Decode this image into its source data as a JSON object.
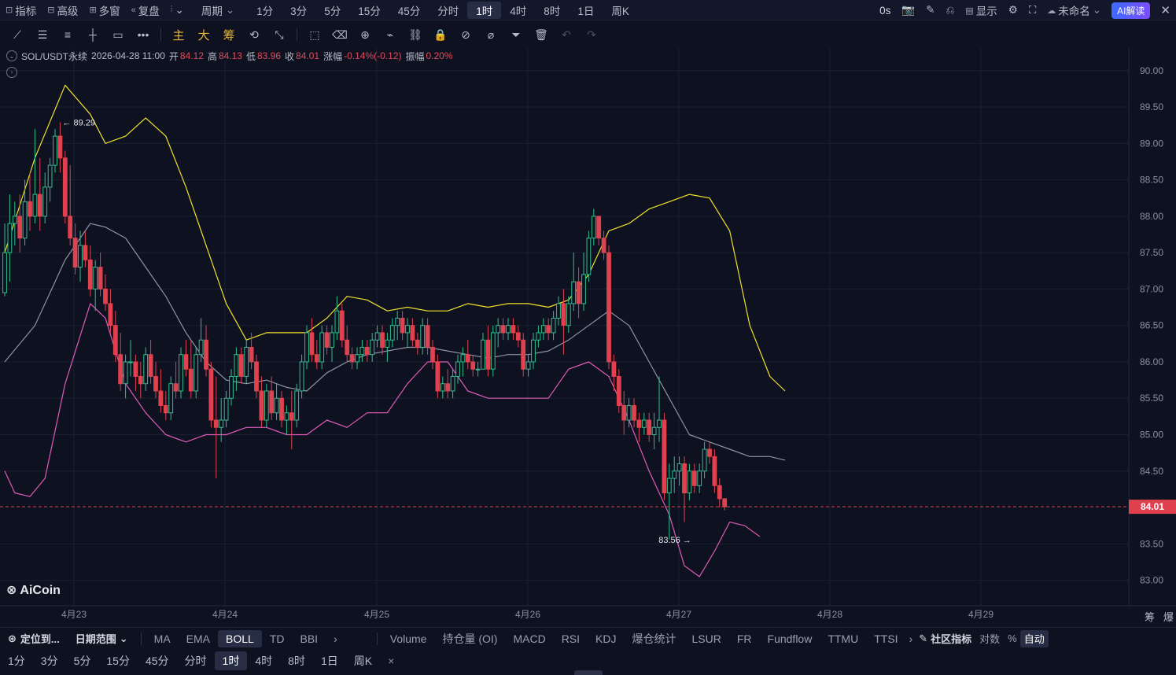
{
  "topbar": {
    "left": [
      {
        "icon": "indicator-icon",
        "glyph": "⊡",
        "label": "指标"
      },
      {
        "icon": "advanced-icon",
        "glyph": "⊟",
        "label": "高级"
      },
      {
        "icon": "multiwindow-icon",
        "glyph": "⊞",
        "label": "多窗"
      },
      {
        "icon": "replay-icon",
        "glyph": "«",
        "label": "复盘"
      },
      {
        "icon": "candle-type-icon",
        "glyph": "⫶",
        "label": "⌄"
      }
    ],
    "period": "周期",
    "period_arrow": "⌄",
    "timeframes": [
      "1分",
      "3分",
      "5分",
      "15分",
      "45分",
      "分时",
      "1时",
      "4时",
      "8时",
      "1日",
      "周K"
    ],
    "active_timeframe": "1时",
    "right": {
      "countdown": "0s",
      "display": "显示",
      "workspace": "未命名",
      "ai": "AI解读"
    }
  },
  "toolbar": {
    "gold": [
      "主",
      "大",
      "筹"
    ]
  },
  "info": {
    "symbol": "SOL/USDT永续",
    "datetime": "2026-04-28 11:00",
    "open_label": "开",
    "open": "84.12",
    "high_label": "高",
    "high": "84.13",
    "low_label": "低",
    "low": "83.96",
    "close_label": "收",
    "close": "84.01",
    "change_label": "涨幅",
    "change": "-0.14%(-0.12)",
    "amp_label": "振幅",
    "amp": "0.20%"
  },
  "chart_data": {
    "type": "candlestick",
    "y_ticks": [
      "90.00",
      "89.50",
      "89.00",
      "88.50",
      "88.00",
      "87.50",
      "87.00",
      "86.50",
      "86.00",
      "85.50",
      "85.00",
      "84.50",
      "84.01",
      "83.50",
      "83.00"
    ],
    "ylim": [
      82.65,
      90.3
    ],
    "x_ticks": [
      "4月23",
      "4月24",
      "4月25",
      "4月26",
      "4月27",
      "4月28",
      "4月29"
    ],
    "last_price": "84.01",
    "annotations": [
      {
        "label": "← 89.29",
        "value": 89.29
      },
      {
        "label": "83.56 →",
        "value": 83.56
      }
    ],
    "indicator": "BOLL",
    "series": [
      {
        "name": "upper",
        "color": "#f2e12c"
      },
      {
        "name": "mid",
        "color": "#8d93a6"
      },
      {
        "name": "lower",
        "color": "#e05ab8"
      }
    ],
    "ohlc": [
      [
        86.95,
        87.9,
        86.9,
        87.5
      ],
      [
        87.5,
        88.3,
        87.1,
        87.9
      ],
      [
        87.9,
        88.2,
        87.6,
        88.0
      ],
      [
        88.0,
        88.3,
        87.5,
        87.7
      ],
      [
        87.7,
        88.5,
        87.6,
        88.2
      ],
      [
        88.2,
        88.6,
        87.8,
        88.0
      ],
      [
        88.0,
        89.2,
        87.9,
        88.3
      ],
      [
        88.3,
        88.8,
        87.8,
        88.0
      ],
      [
        88.0,
        88.6,
        87.9,
        88.4
      ],
      [
        88.4,
        88.8,
        88.2,
        88.7
      ],
      [
        88.7,
        89.2,
        88.6,
        89.1
      ],
      [
        89.1,
        89.29,
        88.6,
        88.8
      ],
      [
        88.8,
        88.9,
        87.9,
        88.0
      ],
      [
        88.0,
        88.7,
        87.6,
        87.7
      ],
      [
        87.7,
        87.9,
        87.2,
        87.3
      ],
      [
        87.3,
        87.8,
        87.1,
        87.6
      ],
      [
        87.6,
        87.8,
        87.3,
        87.4
      ],
      [
        87.4,
        87.6,
        86.9,
        87.0
      ],
      [
        87.0,
        87.4,
        86.7,
        87.3
      ],
      [
        87.3,
        87.5,
        86.9,
        87.0
      ],
      [
        87.0,
        87.2,
        86.7,
        86.8
      ],
      [
        86.8,
        87.0,
        86.4,
        86.5
      ],
      [
        86.5,
        86.7,
        86.0,
        86.1
      ],
      [
        86.1,
        86.4,
        85.6,
        85.7
      ],
      [
        85.7,
        86.1,
        85.5,
        86.0
      ],
      [
        86.0,
        86.3,
        85.8,
        86.0
      ],
      [
        86.0,
        86.1,
        85.6,
        85.8
      ],
      [
        85.8,
        86.0,
        85.5,
        85.7
      ],
      [
        85.7,
        86.2,
        85.6,
        86.1
      ],
      [
        86.1,
        86.3,
        85.7,
        85.8
      ],
      [
        85.8,
        86.0,
        85.5,
        85.6
      ],
      [
        85.6,
        85.9,
        85.3,
        85.4
      ],
      [
        85.4,
        85.6,
        85.2,
        85.3
      ],
      [
        85.3,
        85.8,
        85.2,
        85.7
      ],
      [
        85.7,
        86.0,
        85.5,
        85.6
      ],
      [
        85.6,
        86.2,
        85.5,
        86.1
      ],
      [
        86.1,
        86.3,
        85.8,
        85.9
      ],
      [
        85.9,
        86.3,
        85.5,
        85.6
      ],
      [
        85.6,
        86.2,
        85.5,
        86.1
      ],
      [
        86.1,
        86.6,
        86.0,
        86.3
      ],
      [
        86.3,
        86.5,
        85.8,
        85.9
      ],
      [
        85.9,
        86.0,
        85.1,
        85.2
      ],
      [
        85.2,
        85.8,
        84.4,
        85.1
      ],
      [
        85.1,
        85.5,
        84.9,
        85.2
      ],
      [
        85.2,
        85.6,
        85.1,
        85.5
      ],
      [
        85.5,
        85.9,
        85.4,
        85.8
      ],
      [
        85.8,
        86.2,
        85.6,
        86.1
      ],
      [
        86.1,
        86.2,
        85.7,
        85.8
      ],
      [
        85.8,
        86.3,
        85.7,
        86.2
      ],
      [
        86.2,
        86.4,
        85.9,
        86.0
      ],
      [
        86.0,
        86.1,
        85.5,
        85.6
      ],
      [
        85.6,
        85.8,
        85.1,
        85.2
      ],
      [
        85.2,
        85.7,
        85.1,
        85.6
      ],
      [
        85.6,
        85.8,
        85.2,
        85.3
      ],
      [
        85.3,
        85.7,
        85.2,
        85.5
      ],
      [
        85.5,
        85.6,
        85.1,
        85.2
      ],
      [
        85.2,
        85.4,
        85.0,
        85.3
      ],
      [
        85.3,
        85.6,
        84.8,
        85.2
      ],
      [
        85.2,
        85.7,
        85.1,
        85.6
      ],
      [
        85.6,
        86.1,
        85.5,
        86.0
      ],
      [
        86.0,
        86.5,
        85.9,
        86.4
      ],
      [
        86.4,
        86.6,
        86.0,
        86.1
      ],
      [
        86.1,
        86.3,
        85.9,
        86.0
      ],
      [
        86.0,
        86.5,
        85.9,
        86.4
      ],
      [
        86.4,
        86.5,
        86.1,
        86.2
      ],
      [
        86.2,
        86.5,
        86.0,
        86.4
      ],
      [
        86.4,
        86.9,
        86.3,
        86.7
      ],
      [
        86.7,
        86.8,
        86.2,
        86.3
      ],
      [
        86.3,
        86.5,
        86.0,
        86.1
      ],
      [
        86.1,
        86.2,
        85.9,
        86.0
      ],
      [
        86.0,
        86.2,
        85.9,
        86.1
      ],
      [
        86.1,
        86.3,
        86.0,
        86.2
      ],
      [
        86.2,
        86.3,
        86.0,
        86.1
      ],
      [
        86.1,
        86.4,
        86.0,
        86.3
      ],
      [
        86.3,
        86.5,
        86.2,
        86.4
      ],
      [
        86.4,
        86.5,
        86.1,
        86.2
      ],
      [
        86.2,
        86.4,
        86.0,
        86.3
      ],
      [
        86.3,
        86.6,
        86.2,
        86.5
      ],
      [
        86.5,
        86.7,
        86.3,
        86.6
      ],
      [
        86.6,
        86.7,
        86.3,
        86.4
      ],
      [
        86.4,
        86.6,
        86.2,
        86.5
      ],
      [
        86.5,
        86.6,
        86.2,
        86.3
      ],
      [
        86.3,
        86.4,
        86.1,
        86.2
      ],
      [
        86.2,
        86.6,
        86.1,
        86.5
      ],
      [
        86.5,
        86.6,
        86.1,
        86.2
      ],
      [
        86.2,
        86.3,
        85.9,
        86.0
      ],
      [
        86.0,
        86.1,
        85.5,
        85.6
      ],
      [
        85.6,
        85.8,
        85.5,
        85.7
      ],
      [
        85.7,
        85.9,
        85.5,
        85.6
      ],
      [
        85.6,
        85.9,
        85.5,
        85.8
      ],
      [
        85.8,
        86.1,
        85.7,
        86.0
      ],
      [
        86.0,
        86.2,
        85.8,
        86.1
      ],
      [
        86.1,
        86.3,
        85.9,
        86.0
      ],
      [
        86.0,
        86.1,
        85.8,
        85.9
      ],
      [
        85.9,
        86.0,
        85.8,
        85.9
      ],
      [
        85.9,
        86.4,
        85.9,
        86.3
      ],
      [
        86.3,
        86.5,
        85.8,
        85.9
      ],
      [
        85.9,
        86.5,
        85.8,
        86.4
      ],
      [
        86.4,
        86.6,
        86.2,
        86.5
      ],
      [
        86.5,
        86.6,
        86.3,
        86.4
      ],
      [
        86.4,
        86.6,
        86.3,
        86.5
      ],
      [
        86.5,
        86.6,
        86.3,
        86.4
      ],
      [
        86.4,
        86.5,
        86.2,
        86.3
      ],
      [
        86.3,
        86.4,
        85.8,
        85.9
      ],
      [
        85.9,
        86.1,
        85.8,
        86.0
      ],
      [
        86.0,
        86.4,
        85.9,
        86.3
      ],
      [
        86.3,
        86.5,
        86.2,
        86.4
      ],
      [
        86.4,
        86.6,
        86.3,
        86.5
      ],
      [
        86.5,
        86.6,
        86.3,
        86.4
      ],
      [
        86.4,
        86.7,
        86.3,
        86.6
      ],
      [
        86.6,
        86.9,
        86.5,
        86.8
      ],
      [
        86.8,
        87.0,
        86.1,
        86.5
      ],
      [
        86.5,
        86.9,
        86.4,
        86.8
      ],
      [
        86.8,
        87.5,
        86.7,
        87.1
      ],
      [
        87.1,
        87.3,
        86.6,
        86.8
      ],
      [
        86.8,
        87.5,
        86.7,
        87.2
      ],
      [
        87.2,
        87.8,
        87.1,
        87.7
      ],
      [
        87.7,
        88.1,
        87.6,
        88.0
      ],
      [
        88.0,
        88.0,
        87.6,
        87.7
      ],
      [
        87.7,
        87.8,
        87.4,
        87.5
      ],
      [
        87.5,
        87.6,
        85.9,
        86.0
      ],
      [
        86.0,
        86.1,
        85.6,
        85.8
      ],
      [
        85.8,
        85.9,
        85.3,
        85.4
      ],
      [
        85.4,
        85.6,
        85.0,
        85.2
      ],
      [
        85.2,
        85.5,
        85.1,
        85.4
      ],
      [
        85.4,
        85.5,
        85.1,
        85.2
      ],
      [
        85.2,
        85.3,
        84.9,
        85.1
      ],
      [
        85.1,
        85.3,
        85.0,
        85.2
      ],
      [
        85.2,
        85.3,
        84.9,
        85.0
      ],
      [
        85.0,
        85.3,
        84.8,
        85.1
      ],
      [
        85.1,
        85.8,
        84.9,
        85.2
      ],
      [
        85.2,
        85.3,
        84.1,
        84.2
      ],
      [
        84.2,
        84.6,
        83.56,
        84.4
      ],
      [
        84.4,
        84.7,
        84.2,
        84.5
      ],
      [
        84.5,
        84.7,
        84.3,
        84.6
      ],
      [
        84.6,
        84.7,
        83.8,
        84.2
      ],
      [
        84.2,
        84.6,
        84.1,
        84.5
      ],
      [
        84.5,
        84.6,
        84.2,
        84.3
      ],
      [
        84.3,
        84.6,
        84.2,
        84.5
      ],
      [
        84.5,
        84.9,
        84.4,
        84.8
      ],
      [
        84.8,
        84.9,
        84.6,
        84.7
      ],
      [
        84.7,
        84.8,
        84.2,
        84.3
      ],
      [
        84.3,
        84.4,
        84.0,
        84.12
      ],
      [
        84.12,
        84.13,
        83.96,
        84.01
      ]
    ],
    "boll_upper": [
      [
        0,
        87.5
      ],
      [
        6,
        88.8
      ],
      [
        12,
        89.8
      ],
      [
        17,
        89.4
      ],
      [
        20,
        89.0
      ],
      [
        24,
        89.1
      ],
      [
        28,
        89.35
      ],
      [
        32,
        89.1
      ],
      [
        36,
        88.4
      ],
      [
        40,
        87.6
      ],
      [
        44,
        86.8
      ],
      [
        48,
        86.3
      ],
      [
        52,
        86.4
      ],
      [
        56,
        86.4
      ],
      [
        60,
        86.4
      ],
      [
        64,
        86.6
      ],
      [
        68,
        86.9
      ],
      [
        72,
        86.85
      ],
      [
        76,
        86.7
      ],
      [
        80,
        86.75
      ],
      [
        84,
        86.7
      ],
      [
        88,
        86.7
      ],
      [
        92,
        86.8
      ],
      [
        96,
        86.75
      ],
      [
        100,
        86.8
      ],
      [
        104,
        86.8
      ],
      [
        108,
        86.75
      ],
      [
        112,
        86.85
      ],
      [
        116,
        87.2
      ],
      [
        120,
        87.8
      ],
      [
        124,
        87.9
      ],
      [
        128,
        88.1
      ],
      [
        132,
        88.2
      ],
      [
        136,
        88.3
      ],
      [
        140,
        88.25
      ],
      [
        144,
        87.8
      ],
      [
        148,
        86.5
      ],
      [
        152,
        85.8
      ],
      [
        155,
        85.6
      ]
    ],
    "boll_mid": [
      [
        0,
        86.0
      ],
      [
        6,
        86.5
      ],
      [
        12,
        87.4
      ],
      [
        17,
        87.9
      ],
      [
        20,
        87.85
      ],
      [
        24,
        87.7
      ],
      [
        28,
        87.3
      ],
      [
        32,
        86.9
      ],
      [
        36,
        86.4
      ],
      [
        40,
        86.0
      ],
      [
        44,
        85.75
      ],
      [
        48,
        85.7
      ],
      [
        52,
        85.75
      ],
      [
        56,
        85.65
      ],
      [
        60,
        85.6
      ],
      [
        64,
        85.85
      ],
      [
        68,
        86.0
      ],
      [
        72,
        86.1
      ],
      [
        76,
        86.15
      ],
      [
        80,
        86.2
      ],
      [
        84,
        86.2
      ],
      [
        88,
        86.15
      ],
      [
        92,
        86.1
      ],
      [
        96,
        86.05
      ],
      [
        100,
        86.1
      ],
      [
        104,
        86.1
      ],
      [
        108,
        86.15
      ],
      [
        112,
        86.3
      ],
      [
        116,
        86.5
      ],
      [
        120,
        86.7
      ],
      [
        124,
        86.5
      ],
      [
        128,
        86.0
      ],
      [
        132,
        85.5
      ],
      [
        136,
        85.0
      ],
      [
        140,
        84.9
      ],
      [
        144,
        84.8
      ],
      [
        148,
        84.7
      ],
      [
        152,
        84.7
      ],
      [
        155,
        84.65
      ]
    ],
    "boll_lower": [
      [
        0,
        84.5
      ],
      [
        2,
        84.2
      ],
      [
        5,
        84.15
      ],
      [
        8,
        84.4
      ],
      [
        12,
        85.7
      ],
      [
        17,
        86.8
      ],
      [
        20,
        86.6
      ],
      [
        24,
        85.7
      ],
      [
        28,
        85.3
      ],
      [
        32,
        85.0
      ],
      [
        36,
        84.9
      ],
      [
        40,
        85.0
      ],
      [
        44,
        85.0
      ],
      [
        48,
        85.1
      ],
      [
        52,
        85.1
      ],
      [
        56,
        85.0
      ],
      [
        60,
        85.0
      ],
      [
        64,
        85.2
      ],
      [
        68,
        85.1
      ],
      [
        72,
        85.3
      ],
      [
        76,
        85.3
      ],
      [
        80,
        85.7
      ],
      [
        84,
        86.0
      ],
      [
        88,
        86.0
      ],
      [
        92,
        85.6
      ],
      [
        96,
        85.5
      ],
      [
        100,
        85.5
      ],
      [
        104,
        85.5
      ],
      [
        108,
        85.5
      ],
      [
        112,
        85.9
      ],
      [
        116,
        86.0
      ],
      [
        120,
        85.8
      ],
      [
        124,
        85.2
      ],
      [
        128,
        84.5
      ],
      [
        132,
        83.9
      ],
      [
        135,
        83.2
      ],
      [
        138,
        83.05
      ],
      [
        141,
        83.4
      ],
      [
        144,
        83.8
      ],
      [
        147,
        83.75
      ],
      [
        150,
        83.6
      ]
    ]
  },
  "bottom_bar": {
    "locate": "定位到...",
    "date_range": "日期范围",
    "main_indicators": [
      "MA",
      "EMA",
      "BOLL",
      "TD",
      "BBI"
    ],
    "active_main": "BOLL",
    "more": "›",
    "sub_indicators": [
      "Volume",
      "持仓量 (OI)",
      "MACD",
      "RSI",
      "KDJ",
      "爆仓统计",
      "LSUR",
      "FR",
      "Fundflow",
      "TTMU",
      "TTSI"
    ],
    "community": "社区指标",
    "log": "对数",
    "pct": "%",
    "auto": "自动"
  },
  "bottom_bar2": {
    "timeframes": [
      "1分",
      "3分",
      "5分",
      "15分",
      "45分",
      "分时",
      "1时",
      "4时",
      "8时",
      "1日",
      "周K"
    ],
    "active": "1时",
    "close": "×"
  },
  "logo": "AiCoin",
  "corner": [
    "筹",
    "爆"
  ]
}
